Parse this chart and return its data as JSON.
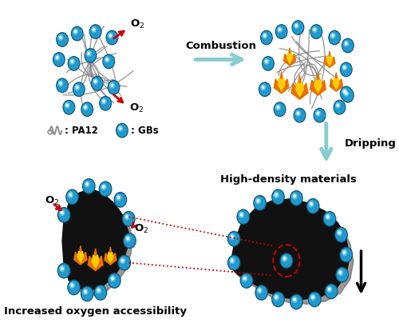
{
  "background_color": "#ffffff",
  "fig_width": 5.0,
  "fig_height": 4.04,
  "dpi": 100,
  "combustion_label": "Combustion",
  "dripping_label": "Dripping",
  "high_density_label": "High-density materials",
  "increased_o2_label": "Increased oxygen accessibility",
  "pa12_label": ": PA12",
  "gbs_label": ": GBs",
  "arrow_color_teal": "#88cccc",
  "arrow_color_red": "#cc0000",
  "gb_color_inner": "#2299cc",
  "gb_color_outer": "#66ccee",
  "gb_dark": "#115577",
  "flame_orange": "#e87000",
  "flame_yellow": "#ffcc00",
  "pa12_thread_color": "#888888",
  "dotted_line_color": "#cc0000",
  "black_blob_color": "#111111",
  "blob_shadow_color": "#555555",
  "text_color": "#000000",
  "label_fontsize": 8.5,
  "bold_fontsize": 9.5
}
